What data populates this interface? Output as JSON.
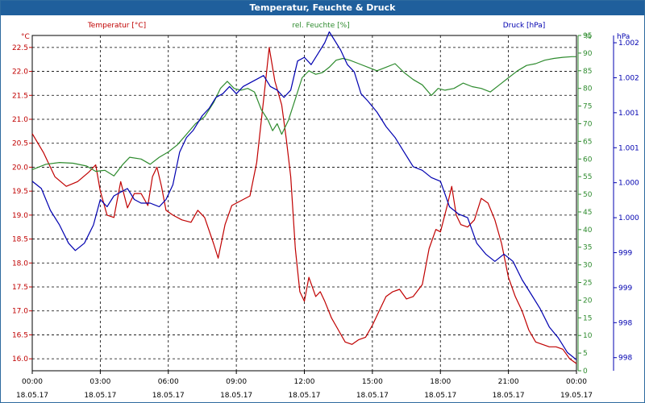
{
  "window": {
    "title": "Temperatur, Feuchte & Druck"
  },
  "chart_data": {
    "type": "line",
    "title": "Temperatur, Feuchte & Druck",
    "grid": true,
    "x": {
      "tick_times": [
        "00:00",
        "03:00",
        "06:00",
        "09:00",
        "12:00",
        "15:00",
        "18:00",
        "21:00",
        "00:00"
      ],
      "tick_dates": [
        "18.05.17",
        "18.05.17",
        "18.05.17",
        "18.05.17",
        "18.05.17",
        "18.05.17",
        "18.05.17",
        "18.05.17",
        "19.05.17"
      ],
      "range_hours": [
        0,
        24
      ]
    },
    "axes": {
      "temperature": {
        "unit": "°C",
        "range": [
          15.75,
          22.75
        ],
        "ticks": [
          "16.0",
          "16.5",
          "17.0",
          "17.5",
          "18.0",
          "18.5",
          "19.0",
          "19.5",
          "20.0",
          "20.5",
          "21.0",
          "21.5",
          "22.0",
          "22.5"
        ],
        "tick_values": [
          16.0,
          16.5,
          17.0,
          17.5,
          18.0,
          18.5,
          19.0,
          19.5,
          20.0,
          20.5,
          21.0,
          21.5,
          22.0,
          22.5
        ]
      },
      "humidity": {
        "unit": "%",
        "range": [
          0,
          95
        ],
        "ticks": [
          "0",
          "5",
          "10",
          "15",
          "20",
          "25",
          "30",
          "35",
          "40",
          "45",
          "50",
          "55",
          "60",
          "65",
          "70",
          "75",
          "80",
          "85",
          "90",
          "95"
        ],
        "tick_values": [
          0,
          5,
          10,
          15,
          20,
          25,
          30,
          35,
          40,
          45,
          50,
          55,
          60,
          65,
          70,
          75,
          80,
          85,
          90,
          95
        ]
      },
      "pressure": {
        "unit": "hPa",
        "range": [
          997.8,
          1002.4
        ],
        "ticks": [
          "998",
          "998",
          "999",
          "999",
          "1.000",
          "1.000",
          "1.001",
          "1.001",
          "1.002",
          "1.002"
        ],
        "tick_values": [
          997.98,
          998.46,
          998.94,
          999.42,
          999.9,
          1000.38,
          1000.86,
          1001.34,
          1001.82,
          1002.3
        ]
      }
    },
    "series": [
      {
        "name": "Temperatur [°C]",
        "axis": "temperature",
        "color": "#c00000",
        "points": [
          [
            0,
            20.7
          ],
          [
            0.5,
            20.3
          ],
          [
            1.0,
            19.8
          ],
          [
            1.5,
            19.6
          ],
          [
            2.0,
            19.7
          ],
          [
            2.5,
            19.9
          ],
          [
            2.8,
            20.05
          ],
          [
            3.0,
            19.5
          ],
          [
            3.3,
            19.0
          ],
          [
            3.6,
            18.95
          ],
          [
            3.9,
            19.7
          ],
          [
            4.2,
            19.15
          ],
          [
            4.5,
            19.45
          ],
          [
            4.8,
            19.45
          ],
          [
            5.1,
            19.2
          ],
          [
            5.3,
            19.8
          ],
          [
            5.5,
            20.0
          ],
          [
            5.7,
            19.6
          ],
          [
            5.9,
            19.1
          ],
          [
            6.2,
            19.0
          ],
          [
            6.6,
            18.9
          ],
          [
            7.0,
            18.85
          ],
          [
            7.3,
            19.1
          ],
          [
            7.6,
            18.95
          ],
          [
            8.0,
            18.4
          ],
          [
            8.2,
            18.1
          ],
          [
            8.5,
            18.8
          ],
          [
            8.8,
            19.2
          ],
          [
            9.2,
            19.3
          ],
          [
            9.6,
            19.4
          ],
          [
            9.9,
            20.1
          ],
          [
            10.2,
            21.4
          ],
          [
            10.45,
            22.5
          ],
          [
            10.7,
            21.8
          ],
          [
            11.0,
            21.3
          ],
          [
            11.2,
            20.6
          ],
          [
            11.4,
            19.8
          ],
          [
            11.6,
            18.3
          ],
          [
            11.8,
            17.4
          ],
          [
            12.0,
            17.2
          ],
          [
            12.2,
            17.7
          ],
          [
            12.5,
            17.3
          ],
          [
            12.7,
            17.4
          ],
          [
            12.9,
            17.2
          ],
          [
            13.2,
            16.85
          ],
          [
            13.5,
            16.6
          ],
          [
            13.8,
            16.35
          ],
          [
            14.1,
            16.3
          ],
          [
            14.4,
            16.4
          ],
          [
            14.7,
            16.45
          ],
          [
            15.0,
            16.7
          ],
          [
            15.3,
            17.0
          ],
          [
            15.6,
            17.3
          ],
          [
            15.9,
            17.4
          ],
          [
            16.2,
            17.45
          ],
          [
            16.5,
            17.25
          ],
          [
            16.8,
            17.3
          ],
          [
            17.2,
            17.55
          ],
          [
            17.5,
            18.3
          ],
          [
            17.8,
            18.7
          ],
          [
            18.0,
            18.65
          ],
          [
            18.3,
            19.2
          ],
          [
            18.5,
            19.6
          ],
          [
            18.7,
            19.0
          ],
          [
            18.9,
            18.8
          ],
          [
            19.2,
            18.75
          ],
          [
            19.5,
            18.9
          ],
          [
            19.8,
            19.35
          ],
          [
            20.1,
            19.25
          ],
          [
            20.4,
            18.9
          ],
          [
            20.7,
            18.4
          ],
          [
            21.0,
            17.7
          ],
          [
            21.3,
            17.3
          ],
          [
            21.6,
            17.0
          ],
          [
            21.9,
            16.6
          ],
          [
            22.2,
            16.35
          ],
          [
            22.5,
            16.3
          ],
          [
            22.8,
            16.25
          ],
          [
            23.1,
            16.25
          ],
          [
            23.4,
            16.2
          ],
          [
            23.7,
            16.0
          ],
          [
            24.0,
            15.9
          ]
        ]
      },
      {
        "name": "rel. Feuchte [%]",
        "axis": "humidity",
        "color": "#2e8b2e",
        "points": [
          [
            0,
            57
          ],
          [
            0.6,
            58.5
          ],
          [
            1.2,
            59
          ],
          [
            1.8,
            58.8
          ],
          [
            2.4,
            58
          ],
          [
            2.8,
            56.5
          ],
          [
            3.2,
            56.8
          ],
          [
            3.6,
            55.2
          ],
          [
            4.0,
            58.5
          ],
          [
            4.3,
            60.5
          ],
          [
            4.8,
            60
          ],
          [
            5.2,
            58.5
          ],
          [
            5.6,
            60.5
          ],
          [
            6.0,
            62
          ],
          [
            6.4,
            64
          ],
          [
            6.8,
            67
          ],
          [
            7.2,
            70
          ],
          [
            7.6,
            72
          ],
          [
            8.0,
            76
          ],
          [
            8.3,
            80
          ],
          [
            8.6,
            82
          ],
          [
            8.9,
            80
          ],
          [
            9.2,
            79.5
          ],
          [
            9.5,
            80
          ],
          [
            9.8,
            79
          ],
          [
            10.1,
            74
          ],
          [
            10.4,
            71
          ],
          [
            10.6,
            68
          ],
          [
            10.8,
            70
          ],
          [
            11.0,
            67
          ],
          [
            11.3,
            71
          ],
          [
            11.6,
            77
          ],
          [
            11.9,
            83
          ],
          [
            12.2,
            85
          ],
          [
            12.5,
            84
          ],
          [
            12.8,
            84.5
          ],
          [
            13.1,
            86
          ],
          [
            13.4,
            88
          ],
          [
            13.7,
            88.5
          ],
          [
            14.0,
            88
          ],
          [
            14.4,
            87
          ],
          [
            14.8,
            86
          ],
          [
            15.2,
            85
          ],
          [
            15.6,
            86
          ],
          [
            16.0,
            87
          ],
          [
            16.4,
            84.5
          ],
          [
            16.8,
            82.5
          ],
          [
            17.2,
            81
          ],
          [
            17.6,
            78
          ],
          [
            17.9,
            80
          ],
          [
            18.2,
            79.5
          ],
          [
            18.6,
            80
          ],
          [
            19.0,
            81.5
          ],
          [
            19.4,
            80.5
          ],
          [
            19.8,
            80
          ],
          [
            20.2,
            79
          ],
          [
            20.6,
            81
          ],
          [
            21.0,
            83
          ],
          [
            21.4,
            85
          ],
          [
            21.8,
            86.5
          ],
          [
            22.2,
            87
          ],
          [
            22.6,
            88
          ],
          [
            23.0,
            88.5
          ],
          [
            23.4,
            88.8
          ],
          [
            23.8,
            89
          ],
          [
            24.0,
            89
          ]
        ]
      },
      {
        "name": "Druck [hPa]",
        "axis": "pressure",
        "color": "#0000b0",
        "points": [
          [
            0,
            1000.4
          ],
          [
            0.4,
            1000.3
          ],
          [
            0.8,
            1000.0
          ],
          [
            1.2,
            999.8
          ],
          [
            1.6,
            999.55
          ],
          [
            1.9,
            999.45
          ],
          [
            2.3,
            999.55
          ],
          [
            2.7,
            999.8
          ],
          [
            3.0,
            1000.15
          ],
          [
            3.3,
            1000.05
          ],
          [
            3.6,
            1000.2
          ],
          [
            3.9,
            1000.25
          ],
          [
            4.2,
            1000.3
          ],
          [
            4.5,
            1000.15
          ],
          [
            4.8,
            1000.1
          ],
          [
            5.2,
            1000.1
          ],
          [
            5.6,
            1000.05
          ],
          [
            5.9,
            1000.15
          ],
          [
            6.2,
            1000.35
          ],
          [
            6.5,
            1000.8
          ],
          [
            6.8,
            1001.0
          ],
          [
            7.1,
            1001.1
          ],
          [
            7.5,
            1001.3
          ],
          [
            7.8,
            1001.4
          ],
          [
            8.1,
            1001.55
          ],
          [
            8.4,
            1001.6
          ],
          [
            8.7,
            1001.7
          ],
          [
            9.0,
            1001.6
          ],
          [
            9.3,
            1001.7
          ],
          [
            9.6,
            1001.75
          ],
          [
            9.9,
            1001.8
          ],
          [
            10.2,
            1001.85
          ],
          [
            10.5,
            1001.7
          ],
          [
            10.8,
            1001.65
          ],
          [
            11.1,
            1001.55
          ],
          [
            11.4,
            1001.65
          ],
          [
            11.7,
            1002.05
          ],
          [
            12.0,
            1002.1
          ],
          [
            12.3,
            1002.0
          ],
          [
            12.6,
            1002.15
          ],
          [
            12.9,
            1002.3
          ],
          [
            13.1,
            1002.45
          ],
          [
            13.3,
            1002.35
          ],
          [
            13.6,
            1002.2
          ],
          [
            13.9,
            1002.0
          ],
          [
            14.2,
            1001.9
          ],
          [
            14.5,
            1001.6
          ],
          [
            14.8,
            1001.5
          ],
          [
            15.2,
            1001.35
          ],
          [
            15.6,
            1001.15
          ],
          [
            16.0,
            1001.0
          ],
          [
            16.4,
            1000.8
          ],
          [
            16.8,
            1000.6
          ],
          [
            17.2,
            1000.55
          ],
          [
            17.6,
            1000.45
          ],
          [
            18.0,
            1000.4
          ],
          [
            18.4,
            1000.05
          ],
          [
            18.8,
            999.95
          ],
          [
            19.2,
            999.9
          ],
          [
            19.6,
            999.55
          ],
          [
            20.0,
            999.4
          ],
          [
            20.4,
            999.3
          ],
          [
            20.8,
            999.4
          ],
          [
            21.2,
            999.3
          ],
          [
            21.6,
            999.05
          ],
          [
            22.0,
            998.85
          ],
          [
            22.4,
            998.65
          ],
          [
            22.8,
            998.4
          ],
          [
            23.2,
            998.25
          ],
          [
            23.6,
            998.05
          ],
          [
            24.0,
            997.95
          ]
        ]
      }
    ]
  }
}
